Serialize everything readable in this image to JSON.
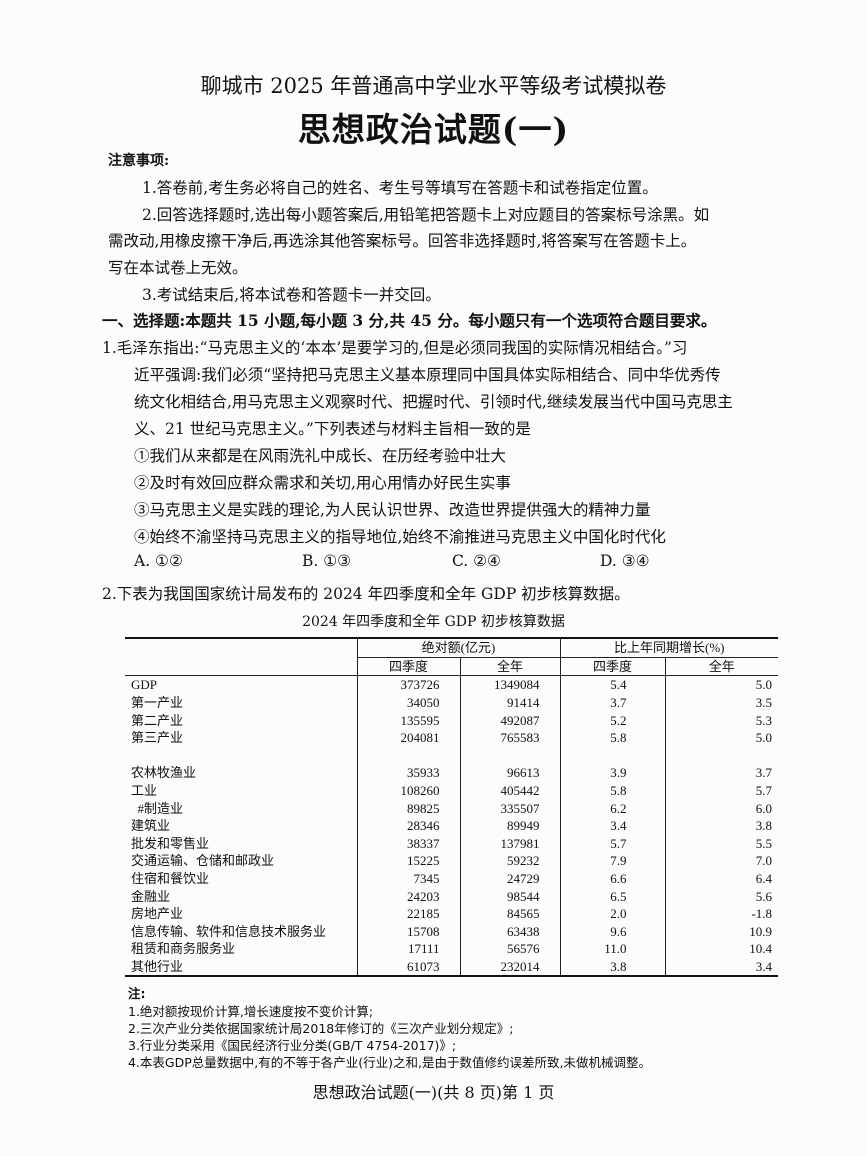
{
  "header": {
    "subtitle": "聊城市 2025 年普通高中学业水平等级考试模拟卷",
    "title": "思想政治试题(一)"
  },
  "notice": {
    "heading": "注意事项:",
    "items": [
      "1.答卷前,考生务必将自己的姓名、考生号等填写在答题卡和试卷指定位置。",
      "2.回答选择题时,选出每小题答案后,用铅笔把答题卡上对应题目的答案标号涂黑。如",
      "需改动,用橡皮擦干净后,再选涂其他答案标号。回答非选择题时,将答案写在答题卡上。",
      "写在本试卷上无效。",
      "3.考试结束后,将本试卷和答题卡一并交回。"
    ]
  },
  "section1": "一、选择题:本题共 15 小题,每小题 3 分,共 45 分。每小题只有一个选项符合题目要求。",
  "q1": {
    "lines": [
      "1.毛泽东指出:“马克思主义的‘本本’是要学习的,但是必须同我国的实际情况相结合。”习",
      "近平强调:我们必须“坚持把马克思主义基本原理同中国具体实际相结合、同中华优秀传",
      "统文化相结合,用马克思主义观察时代、把握时代、引领时代,继续发展当代中国马克思主",
      "义、21 世纪马克思主义。”下列表述与材料主旨相一致的是"
    ],
    "statements": [
      "①我们从来都是在风雨洗礼中成长、在历经考验中壮大",
      "②及时有效回应群众需求和关切,用心用情办好民生实事",
      "③马克思主义是实践的理论,为人民认识世界、改造世界提供强大的精神力量",
      "④始终不渝坚持马克思主义的指导地位,始终不渝推进马克思主义中国化时代化"
    ],
    "options": [
      "A. ①②",
      "B. ①③",
      "C. ②④",
      "D. ③④"
    ]
  },
  "q2": {
    "text": "2.下表为我国国家统计局发布的 2024 年四季度和全年 GDP 初步核算数据。",
    "table_title": "2024 年四季度和全年 GDP 初步核算数据",
    "group_headers": [
      "绝对额(亿元)",
      "比上年同期增长(%)"
    ],
    "sub_headers": [
      "四季度",
      "全年",
      "四季度",
      "全年"
    ],
    "rows": [
      [
        "GDP",
        "373726",
        "1349084",
        "5.4",
        "5.0"
      ],
      [
        "第一产业",
        "34050",
        "91414",
        "3.7",
        "3.5"
      ],
      [
        "第二产业",
        "135595",
        "492087",
        "5.2",
        "5.3"
      ],
      [
        "第三产业",
        "204081",
        "765583",
        "5.8",
        "5.0"
      ],
      [
        "",
        "",
        "",
        "",
        ""
      ],
      [
        "农林牧渔业",
        "35933",
        "96613",
        "3.9",
        "3.7"
      ],
      [
        "工业",
        "108260",
        "405442",
        "5.8",
        "5.7"
      ],
      [
        "  #制造业",
        "89825",
        "335507",
        "6.2",
        "6.0"
      ],
      [
        "建筑业",
        "28346",
        "89949",
        "3.4",
        "3.8"
      ],
      [
        "批发和零售业",
        "38337",
        "137981",
        "5.7",
        "5.5"
      ],
      [
        "交通运输、仓储和邮政业",
        "15225",
        "59232",
        "7.9",
        "7.0"
      ],
      [
        "住宿和餐饮业",
        "7345",
        "24729",
        "6.6",
        "6.4"
      ],
      [
        "金融业",
        "24203",
        "98544",
        "6.5",
        "5.6"
      ],
      [
        "房地产业",
        "22185",
        "84565",
        "2.0",
        "-1.8"
      ],
      [
        "信息传输、软件和信息技术服务业",
        "15708",
        "63438",
        "9.6",
        "10.9"
      ],
      [
        "租赁和商务服务业",
        "17111",
        "56576",
        "11.0",
        "10.4"
      ],
      [
        "其他行业",
        "61073",
        "232014",
        "3.8",
        "3.4"
      ]
    ],
    "notes_heading": "注:",
    "notes": [
      "1.绝对额按现价计算,增长速度按不变价计算;",
      "2.三次产业分类依据国家统计局2018年修订的《三次产业划分规定》;",
      "3.行业分类采用《国民经济行业分类(GB/T 4754-2017)》;",
      "4.本表GDP总量数据中,有的不等于各产业(行业)之和,是由于数值修约误差所致,未做机械调整。"
    ]
  },
  "footer": "思想政治试题(一)(共 8 页)第 1 页"
}
